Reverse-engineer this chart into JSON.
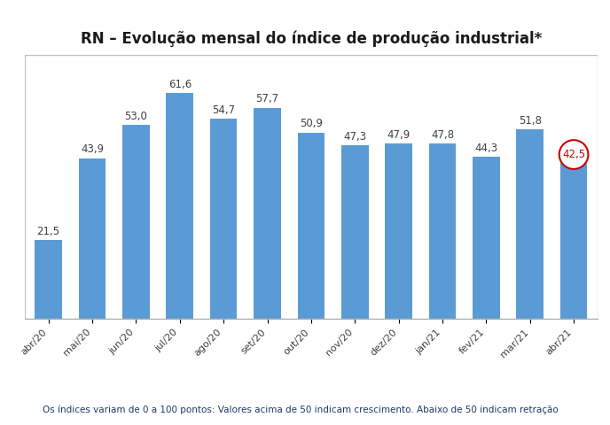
{
  "title": "RN – Evolução mensal do índice de produção industrial*",
  "categories": [
    "abr/20",
    "mai/20",
    "jun/20",
    "jul/20",
    "ago/20",
    "set/20",
    "out/20",
    "nov/20",
    "dez/20",
    "jan/21",
    "fev/21",
    "mar/21",
    "abr/21"
  ],
  "values": [
    21.5,
    43.9,
    53.0,
    61.6,
    54.7,
    57.7,
    50.9,
    47.3,
    47.9,
    47.8,
    44.3,
    51.8,
    42.5
  ],
  "bar_color": "#5b9bd5",
  "circle_color": "#cc0000",
  "ylim": [
    0,
    72
  ],
  "footnote": "Os índices variam de 0 a 100 pontos: Valores acima de 50 indicam crescimento. Abaixo de 50 indicam retração",
  "footnote_color": "#1f3864",
  "background_color": "#ffffff",
  "plot_background": "#ffffff",
  "border_color": "#c0c0c0",
  "title_fontsize": 12,
  "label_fontsize": 8.5,
  "tick_fontsize": 8,
  "footnote_fontsize": 7.5
}
